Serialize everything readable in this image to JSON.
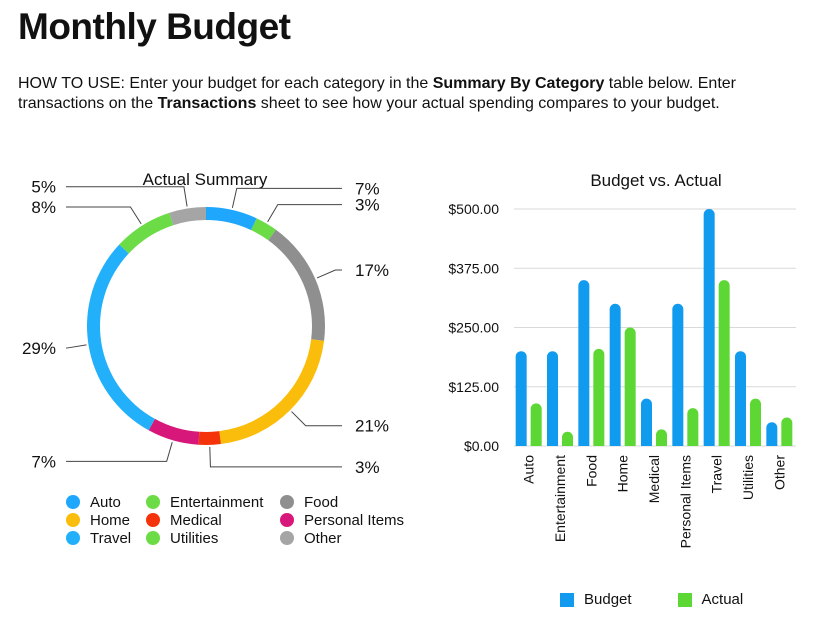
{
  "page": {
    "title": "Monthly Budget",
    "instructions": {
      "p1": "HOW TO USE: Enter your budget for each category in the ",
      "b1": "Summary By Category",
      "p2": " table below. Enter transactions on the ",
      "b2": "Transactions",
      "p3": " sheet to see how your actual spending compares to your budget."
    }
  },
  "chart_data": [
    {
      "type": "pie",
      "title": "Actual Summary",
      "donut": true,
      "slices": [
        {
          "label": "Auto",
          "value": 7,
          "display": "7%",
          "color": "#1ea7fd"
        },
        {
          "label": "Entertainment",
          "value": 3,
          "display": "3%",
          "color": "#6bdc45"
        },
        {
          "label": "Food",
          "value": 17,
          "display": "17%",
          "color": "#8f8f8f"
        },
        {
          "label": "Home",
          "value": 21,
          "display": "21%",
          "color": "#fbbd0b"
        },
        {
          "label": "Medical",
          "value": 3,
          "display": "3%",
          "color": "#f4330b"
        },
        {
          "label": "Personal Items",
          "value": 7,
          "display": "7%",
          "color": "#d8177a"
        },
        {
          "label": "Travel",
          "value": 29,
          "display": "29%",
          "color": "#22b0fa"
        },
        {
          "label": "Utilities",
          "value": 8,
          "display": "8%",
          "color": "#6bdc45"
        },
        {
          "label": "Other",
          "value": 5,
          "display": "5%",
          "color": "#a5a5a5"
        }
      ],
      "legend_position": "bottom"
    },
    {
      "type": "bar",
      "title": "Budget vs. Actual",
      "categories": [
        "Auto",
        "Entertainment",
        "Food",
        "Home",
        "Medical",
        "Personal Items",
        "Travel",
        "Utilities",
        "Other"
      ],
      "series": [
        {
          "name": "Budget",
          "color": "#119bef",
          "values": [
            200,
            200,
            350,
            300,
            100,
            300,
            500,
            200,
            50
          ]
        },
        {
          "name": "Actual",
          "color": "#5cd733",
          "values": [
            90,
            30,
            205,
            250,
            35,
            80,
            350,
            100,
            60
          ]
        }
      ],
      "ylim": [
        0,
        500
      ],
      "yticks": [
        "$0.00",
        "$125.00",
        "$250.00",
        "$375.00",
        "$500.00"
      ],
      "grid": true,
      "legend_position": "bottom"
    }
  ]
}
